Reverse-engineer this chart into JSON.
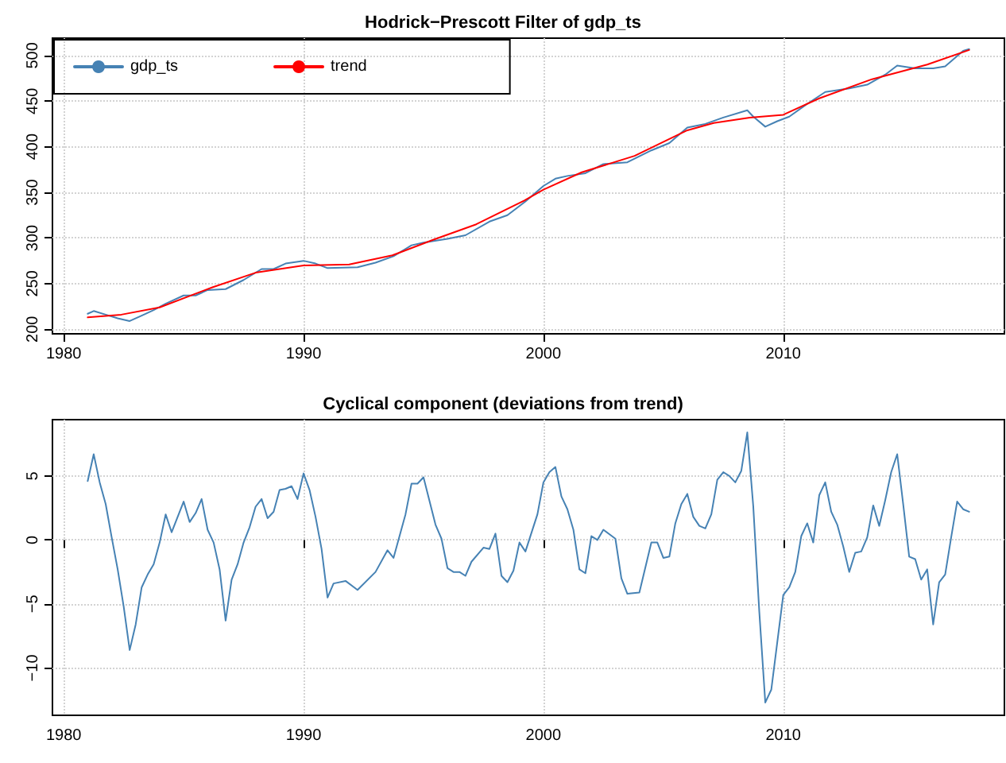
{
  "chart_data": [
    {
      "type": "line",
      "title": "Hodrick−Prescott Filter of gdp_ts",
      "legend": "top left",
      "grid": true,
      "xlim": [
        1979.53,
        2019.22
      ],
      "xticks": [
        1980,
        1990,
        2000,
        2010
      ],
      "ylim": [
        195,
        519
      ],
      "yticks": [
        200,
        250,
        300,
        350,
        400,
        450,
        500
      ],
      "series": [
        {
          "name": "gdp_ts",
          "color": "#4682b4",
          "x": [
            1981,
            1981.25,
            1981.75,
            1982.25,
            1982.75,
            1983.25,
            1983.75,
            1984.25,
            1985,
            1985.5,
            1986,
            1986.75,
            1987.5,
            1988.25,
            1988.75,
            1989.25,
            1990,
            1990.5,
            1991,
            1992.25,
            1993,
            1993.75,
            1994.5,
            1995,
            1996,
            1996.75,
            1997.75,
            1998.5,
            1999.25,
            2000,
            2000.5,
            2001,
            2001.75,
            2002.5,
            2003.5,
            2004.5,
            2005.25,
            2006,
            2006.75,
            2007.5,
            2008.5,
            2008.75,
            2009.25,
            2009.75,
            2010.25,
            2011,
            2011.75,
            2012.75,
            2013.5,
            2014.25,
            2014.75,
            2015.5,
            2016.25,
            2016.75,
            2017.5,
            2017.75
          ],
          "values": [
            217,
            220,
            216,
            212,
            209,
            215,
            221,
            228,
            237,
            237,
            243,
            244,
            254,
            266,
            266,
            272,
            275,
            272,
            267,
            268,
            273,
            280,
            292,
            295,
            299,
            303,
            318,
            325,
            340,
            357,
            365,
            368,
            371,
            381,
            383,
            396,
            404,
            421,
            425,
            432,
            440,
            433,
            422,
            428,
            433,
            447,
            460,
            464,
            468,
            479,
            489,
            486,
            486,
            488,
            505,
            507
          ]
        },
        {
          "name": "trend",
          "color": "#ff0000",
          "x": [
            1981,
            1982.4,
            1984,
            1986.2,
            1988,
            1990,
            1991.9,
            1993.7,
            1995.4,
            1997.2,
            1999.2,
            2000,
            2001.6,
            2003.8,
            2006,
            2007.1,
            2008.6,
            2010,
            2011.5,
            2013.7,
            2016,
            2017.75
          ],
          "values": [
            213,
            216,
            224,
            246,
            262,
            270,
            271,
            281,
            298,
            315,
            341,
            353,
            372,
            390,
            418,
            426,
            432,
            435,
            453,
            474,
            490,
            506
          ]
        }
      ]
    },
    {
      "type": "line",
      "title": "Cyclical component (deviations from trend)",
      "grid": true,
      "xlim": [
        1979.53,
        2019.22
      ],
      "xticks": [
        1980,
        1990,
        2000,
        2010
      ],
      "ylim": [
        -13.7,
        9.4
      ],
      "yticks": [
        -10,
        -5,
        0,
        5
      ],
      "series": [
        {
          "color": "#4682b4",
          "x": [
            1981,
            1981.25,
            1981.5,
            1981.75,
            1982,
            1982.25,
            1982.5,
            1982.75,
            1983,
            1983.25,
            1983.5,
            1983.75,
            1984,
            1984.25,
            1984.5,
            1984.75,
            1985,
            1985.25,
            1985.5,
            1985.75,
            1986,
            1986.25,
            1986.5,
            1986.75,
            1987,
            1987.25,
            1987.5,
            1987.75,
            1988,
            1988.25,
            1988.5,
            1988.75,
            1989,
            1989.25,
            1989.5,
            1989.75,
            1990,
            1990.25,
            1990.5,
            1990.75,
            1991,
            1991.25,
            1991.75,
            1992.25,
            1993,
            1993.5,
            1993.75,
            1994.25,
            1994.5,
            1994.75,
            1995,
            1995.5,
            1995.75,
            1996,
            1996.25,
            1996.5,
            1996.75,
            1997,
            1997.5,
            1997.75,
            1998,
            1998.25,
            1998.5,
            1998.75,
            1999,
            1999.25,
            1999.75,
            2000,
            2000.25,
            2000.5,
            2000.75,
            2001,
            2001.25,
            2001.5,
            2001.75,
            2002,
            2002.25,
            2002.5,
            2003,
            2003.25,
            2003.5,
            2004,
            2004.5,
            2004.75,
            2005,
            2005.25,
            2005.5,
            2005.75,
            2006,
            2006.25,
            2006.5,
            2006.75,
            2007,
            2007.25,
            2007.5,
            2007.75,
            2008,
            2008.25,
            2008.5,
            2008.75,
            2009,
            2009.25,
            2009.5,
            2009.75,
            2010,
            2010.25,
            2010.5,
            2010.75,
            2011,
            2011.25,
            2011.5,
            2011.75,
            2012,
            2012.25,
            2012.5,
            2012.75,
            2013,
            2013.25,
            2013.5,
            2013.75,
            2014,
            2014.25,
            2014.5,
            2014.75,
            2015,
            2015.25,
            2015.5,
            2015.75,
            2016,
            2016.25,
            2016.5,
            2016.75,
            2017,
            2017.25,
            2017.5,
            2017.75
          ],
          "values": [
            4.6,
            6.7,
            4.5,
            2.8,
            0.2,
            -2.3,
            -5.2,
            -8.6,
            -6.6,
            -3.7,
            -2.7,
            -1.9,
            -0.2,
            2.0,
            0.6,
            1.8,
            3.0,
            1.4,
            2.1,
            3.2,
            0.8,
            -0.2,
            -2.3,
            -6.3,
            -3.1,
            -1.9,
            -0.2,
            1.0,
            2.6,
            3.2,
            1.7,
            2.2,
            3.9,
            4.0,
            4.2,
            3.2,
            5.2,
            3.9,
            1.8,
            -0.7,
            -4.5,
            -3.4,
            -3.2,
            -3.9,
            -2.5,
            -0.8,
            -1.4,
            2.0,
            4.4,
            4.4,
            4.9,
            1.2,
            0.1,
            -2.2,
            -2.5,
            -2.5,
            -2.8,
            -1.7,
            -0.6,
            -0.7,
            0.5,
            -2.8,
            -3.3,
            -2.4,
            -0.2,
            -0.9,
            2.0,
            4.5,
            5.3,
            5.7,
            3.4,
            2.4,
            0.8,
            -2.3,
            -2.6,
            0.3,
            0.0,
            0.8,
            0.1,
            -3.0,
            -4.2,
            -4.1,
            -0.2,
            -0.2,
            -1.4,
            -1.3,
            1.3,
            2.8,
            3.6,
            1.8,
            1.1,
            0.9,
            2.0,
            4.7,
            5.3,
            5.0,
            4.5,
            5.4,
            8.4,
            2.6,
            -5.6,
            -12.7,
            -11.7,
            -8.0,
            -4.3,
            -3.7,
            -2.5,
            0.3,
            1.3,
            -0.2,
            3.5,
            4.5,
            2.2,
            1.2,
            -0.5,
            -2.5,
            -1.0,
            -0.9,
            0.2,
            2.7,
            1.1,
            3.1,
            5.3,
            6.7,
            2.8,
            -1.3,
            -1.5,
            -3.1,
            -2.3,
            -6.6,
            -3.3,
            -2.7,
            0.2,
            3.0,
            2.4,
            2.2
          ]
        }
      ]
    }
  ]
}
